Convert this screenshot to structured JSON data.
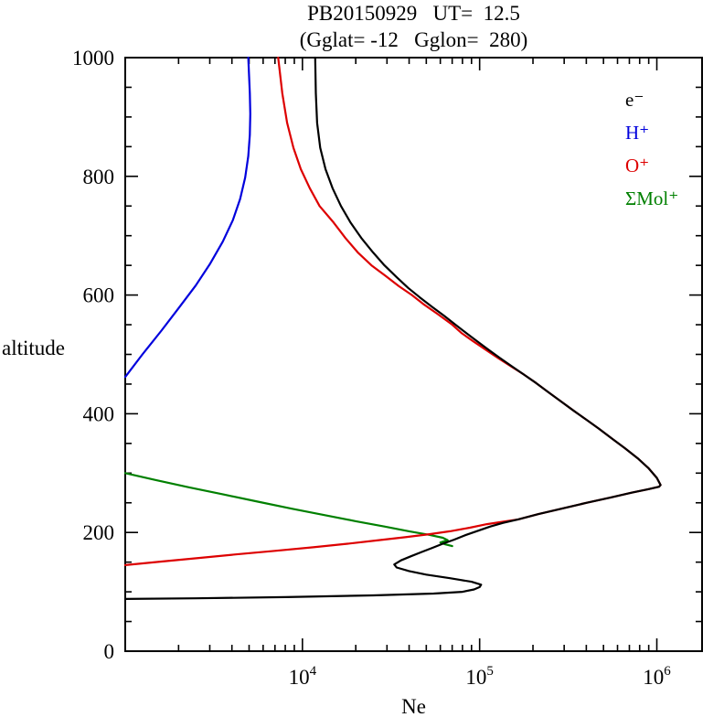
{
  "title": {
    "line1": "PB20150929   UT=  12.5",
    "line2": "(Gglat= -12   Gglon=  280)"
  },
  "axes": {
    "y_label": "altitude",
    "x_label": "Ne"
  },
  "legend": {
    "items": [
      {
        "label": "e⁻",
        "color": "#000000"
      },
      {
        "label": "H⁺",
        "color": "#0000dd"
      },
      {
        "label": "O⁺",
        "color": "#dd0000"
      },
      {
        "label": "ΣMol⁺",
        "color": "#008000"
      }
    ]
  },
  "chart_data": {
    "type": "line",
    "title": "PB20150929  UT= 12.5",
    "subtitle": "(Gglat= -12  Gglon= 280)",
    "xlabel": "Ne",
    "ylabel": "altitude",
    "x_scale": "log",
    "xlim": [
      1000,
      1800000
    ],
    "ylim": [
      0,
      1000
    ],
    "grid": false,
    "legend_position": "top-right",
    "x_ticks": [
      {
        "value": 10000,
        "label": "10^4"
      },
      {
        "value": 100000,
        "label": "10^5"
      },
      {
        "value": 1000000,
        "label": "10^6"
      }
    ],
    "y_ticks": [
      0,
      200,
      400,
      600,
      800,
      1000
    ],
    "y_minor_step": 50,
    "series": [
      {
        "name": "H+",
        "color": "#0000dd",
        "points": [
          [
            1000,
            462
          ],
          [
            1250,
            500
          ],
          [
            1600,
            540
          ],
          [
            2000,
            578
          ],
          [
            2500,
            616
          ],
          [
            3000,
            652
          ],
          [
            3550,
            690
          ],
          [
            4050,
            726
          ],
          [
            4450,
            762
          ],
          [
            4750,
            798
          ],
          [
            4950,
            834
          ],
          [
            5050,
            870
          ],
          [
            5080,
            905
          ],
          [
            5050,
            940
          ],
          [
            4950,
            1000
          ]
        ]
      },
      {
        "name": "Mol+",
        "color": "#008000",
        "points": [
          [
            1000,
            300
          ],
          [
            1500,
            288
          ],
          [
            2300,
            276
          ],
          [
            3600,
            264
          ],
          [
            5600,
            252
          ],
          [
            8700,
            240
          ],
          [
            13500,
            229
          ],
          [
            20000,
            219
          ],
          [
            29000,
            210
          ],
          [
            40000,
            202
          ],
          [
            52000,
            196
          ],
          [
            62000,
            191
          ],
          [
            66000,
            187
          ],
          [
            60000,
            183
          ],
          [
            64000,
            180
          ],
          [
            70000,
            177
          ]
        ]
      },
      {
        "name": "O+",
        "color": "#dd0000",
        "points": [
          [
            1000,
            145
          ],
          [
            1600,
            151
          ],
          [
            2600,
            157
          ],
          [
            4200,
            163
          ],
          [
            7000,
            169
          ],
          [
            11500,
            175
          ],
          [
            18000,
            181
          ],
          [
            27000,
            187
          ],
          [
            38000,
            192
          ],
          [
            52000,
            197
          ],
          [
            68000,
            202
          ],
          [
            88000,
            208
          ],
          [
            110000,
            214
          ],
          [
            135000,
            218
          ],
          [
            165000,
            222
          ],
          [
            215000,
            231
          ],
          [
            290000,
            240
          ],
          [
            400000,
            250
          ],
          [
            550000,
            259
          ],
          [
            720000,
            267
          ],
          [
            900000,
            273
          ],
          [
            1030000,
            277
          ],
          [
            1050000,
            280
          ],
          [
            1000000,
            292
          ],
          [
            900000,
            308
          ],
          [
            780000,
            325
          ],
          [
            660000,
            342
          ],
          [
            560000,
            358
          ],
          [
            470000,
            375
          ],
          [
            400000,
            390
          ],
          [
            340000,
            405
          ],
          [
            290000,
            420
          ],
          [
            245000,
            436
          ],
          [
            208000,
            452
          ],
          [
            178000,
            466
          ],
          [
            150000,
            480
          ],
          [
            127000,
            494
          ],
          [
            108000,
            508
          ],
          [
            92000,
            522
          ],
          [
            79000,
            536
          ],
          [
            70000,
            550
          ],
          [
            58000,
            568
          ],
          [
            48000,
            585
          ],
          [
            41500,
            600
          ],
          [
            35000,
            615
          ],
          [
            29500,
            632
          ],
          [
            24500,
            650
          ],
          [
            20500,
            672
          ],
          [
            17500,
            696
          ],
          [
            15000,
            722
          ],
          [
            12500,
            750
          ],
          [
            11000,
            780
          ],
          [
            9800,
            812
          ],
          [
            8900,
            848
          ],
          [
            8200,
            890
          ],
          [
            7700,
            940
          ],
          [
            7300,
            1000
          ]
        ]
      },
      {
        "name": "e-",
        "color": "#000000",
        "points": [
          [
            1000,
            88
          ],
          [
            2500,
            89
          ],
          [
            8000,
            91
          ],
          [
            25000,
            94
          ],
          [
            55000,
            97
          ],
          [
            80000,
            100
          ],
          [
            93000,
            104
          ],
          [
            100000,
            108
          ],
          [
            102000,
            112
          ],
          [
            90000,
            117
          ],
          [
            68000,
            123
          ],
          [
            50000,
            129
          ],
          [
            40000,
            135
          ],
          [
            34000,
            141
          ],
          [
            33000,
            146
          ],
          [
            36000,
            153
          ],
          [
            41000,
            160
          ],
          [
            47000,
            167
          ],
          [
            54000,
            174
          ],
          [
            62000,
            181
          ],
          [
            72000,
            188
          ],
          [
            84000,
            196
          ],
          [
            98000,
            203
          ],
          [
            115000,
            210
          ],
          [
            135000,
            216
          ],
          [
            165000,
            222
          ],
          [
            215000,
            231
          ],
          [
            290000,
            240
          ],
          [
            400000,
            250
          ],
          [
            550000,
            259
          ],
          [
            720000,
            267
          ],
          [
            900000,
            273
          ],
          [
            1030000,
            277
          ],
          [
            1050000,
            280
          ],
          [
            1000000,
            292
          ],
          [
            900000,
            308
          ],
          [
            780000,
            325
          ],
          [
            660000,
            342
          ],
          [
            560000,
            358
          ],
          [
            470000,
            375
          ],
          [
            400000,
            390
          ],
          [
            340000,
            405
          ],
          [
            290000,
            420
          ],
          [
            245000,
            436
          ],
          [
            208000,
            452
          ],
          [
            178000,
            466
          ],
          [
            152000,
            480
          ],
          [
            130000,
            494
          ],
          [
            112000,
            508
          ],
          [
            97000,
            522
          ],
          [
            84000,
            536
          ],
          [
            73000,
            550
          ],
          [
            63000,
            565
          ],
          [
            54000,
            580
          ],
          [
            46000,
            596
          ],
          [
            39500,
            612
          ],
          [
            34000,
            630
          ],
          [
            29000,
            650
          ],
          [
            25000,
            672
          ],
          [
            21500,
            696
          ],
          [
            18700,
            722
          ],
          [
            16500,
            750
          ],
          [
            14800,
            780
          ],
          [
            13500,
            812
          ],
          [
            12600,
            848
          ],
          [
            12100,
            890
          ],
          [
            11900,
            940
          ],
          [
            11800,
            1000
          ]
        ]
      }
    ]
  }
}
